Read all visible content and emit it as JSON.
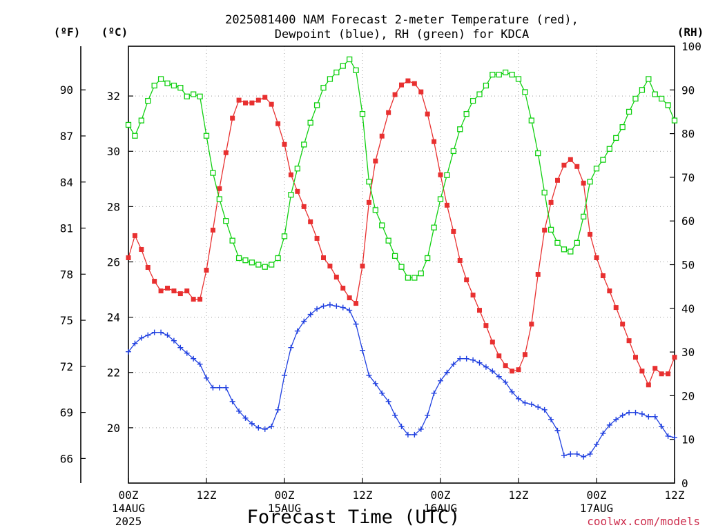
{
  "chart_data": {
    "type": "line",
    "title_line1": "2025081400 NAM Forecast 2-meter Temperature (red),",
    "title_line2": "Dewpoint (blue), RH (green) for KDCA",
    "xlabel": "Forecast Time (UTC)",
    "credit": "coolwx.com/models",
    "unit_f": "(ºF)",
    "unit_c": "(ºC)",
    "unit_rh": "(RH)",
    "x_range_hours": [
      0,
      84
    ],
    "x_ticks": [
      {
        "hour": 0,
        "line1": "00Z",
        "line2": "14AUG",
        "line3": "2025"
      },
      {
        "hour": 12,
        "line1": "12Z",
        "line2": "",
        "line3": ""
      },
      {
        "hour": 24,
        "line1": "00Z",
        "line2": "15AUG",
        "line3": ""
      },
      {
        "hour": 36,
        "line1": "12Z",
        "line2": "",
        "line3": ""
      },
      {
        "hour": 48,
        "line1": "00Z",
        "line2": "16AUG",
        "line3": ""
      },
      {
        "hour": 60,
        "line1": "12Z",
        "line2": "",
        "line3": ""
      },
      {
        "hour": 72,
        "line1": "00Z",
        "line2": "17AUG",
        "line3": ""
      },
      {
        "hour": 84,
        "line1": "12Z",
        "line2": "",
        "line3": ""
      }
    ],
    "y_celsius": {
      "range": [
        18.0,
        33.8
      ],
      "ticks": [
        "20",
        "22",
        "24",
        "26",
        "28",
        "30",
        "32"
      ]
    },
    "y_fahrenheit": {
      "ticks": [
        "66",
        "69",
        "72",
        "75",
        "78",
        "81",
        "84",
        "87",
        "90"
      ]
    },
    "y_rh": {
      "range": [
        0,
        100
      ],
      "ticks": [
        "0",
        "10",
        "20",
        "30",
        "40",
        "50",
        "60",
        "70",
        "80",
        "90",
        "100"
      ]
    },
    "grid": true,
    "colors": {
      "temperature": "#e83030",
      "dewpoint": "#2040e0",
      "rh": "#10d010",
      "grid": "#999999",
      "credit": "#cc2a4a"
    },
    "series": [
      {
        "name": "Temperature",
        "axis": "celsius",
        "marker": "filled-square",
        "hours": [
          0,
          1,
          2,
          3,
          4,
          5,
          6,
          7,
          8,
          9,
          10,
          11,
          12,
          13,
          14,
          15,
          16,
          17,
          18,
          19,
          20,
          21,
          22,
          23,
          24,
          25,
          26,
          27,
          28,
          29,
          30,
          31,
          32,
          33,
          34,
          35,
          36,
          37,
          38,
          39,
          40,
          41,
          42,
          43,
          44,
          45,
          46,
          47,
          48,
          49,
          50,
          51,
          52,
          53,
          54,
          55,
          56,
          57,
          58,
          59,
          60,
          61,
          62,
          63,
          64,
          65,
          66,
          67,
          68,
          69,
          70,
          71,
          72,
          73,
          74,
          75,
          76,
          77,
          78,
          79,
          80,
          81,
          82,
          83,
          84
        ],
        "values": [
          26.15,
          26.95,
          26.45,
          25.8,
          25.3,
          24.95,
          25.05,
          24.95,
          24.85,
          24.95,
          24.65,
          24.65,
          25.7,
          27.15,
          28.65,
          29.95,
          31.2,
          31.85,
          31.75,
          31.75,
          31.85,
          31.95,
          31.7,
          31.0,
          30.25,
          29.15,
          28.55,
          28.0,
          27.45,
          26.85,
          26.15,
          25.85,
          25.45,
          25.05,
          24.7,
          24.5,
          25.85,
          28.15,
          29.65,
          30.55,
          31.4,
          32.05,
          32.4,
          32.55,
          32.45,
          32.15,
          31.35,
          30.35,
          29.15,
          28.05,
          27.1,
          26.05,
          25.35,
          24.8,
          24.25,
          23.7,
          23.1,
          22.6,
          22.25,
          22.05,
          22.1,
          22.65,
          23.75,
          25.55,
          27.15,
          28.15,
          28.95,
          29.5,
          29.7,
          29.45,
          28.85,
          27.0,
          26.15,
          25.5,
          24.95,
          24.35,
          23.75,
          23.15,
          22.55,
          22.05,
          21.55,
          22.15,
          21.95,
          21.95,
          22.55
        ]
      },
      {
        "name": "Dewpoint",
        "axis": "celsius",
        "marker": "plus",
        "hours": [
          0,
          1,
          2,
          3,
          4,
          5,
          6,
          7,
          8,
          9,
          10,
          11,
          12,
          13,
          14,
          15,
          16,
          17,
          18,
          19,
          20,
          21,
          22,
          23,
          24,
          25,
          26,
          27,
          28,
          29,
          30,
          31,
          32,
          33,
          34,
          35,
          36,
          37,
          38,
          39,
          40,
          41,
          42,
          43,
          44,
          45,
          46,
          47,
          48,
          49,
          50,
          51,
          52,
          53,
          54,
          55,
          56,
          57,
          58,
          59,
          60,
          61,
          62,
          63,
          64,
          65,
          66,
          67,
          68,
          69,
          70,
          71,
          72,
          73,
          74,
          75,
          76,
          77,
          78,
          79,
          80,
          81,
          82,
          83,
          84
        ],
        "values": [
          22.75,
          23.05,
          23.25,
          23.35,
          23.45,
          23.45,
          23.35,
          23.15,
          22.9,
          22.7,
          22.5,
          22.3,
          21.8,
          21.45,
          21.45,
          21.45,
          20.95,
          20.6,
          20.35,
          20.15,
          20.0,
          19.95,
          20.05,
          20.65,
          21.9,
          22.9,
          23.5,
          23.85,
          24.1,
          24.3,
          24.4,
          24.45,
          24.4,
          24.35,
          24.25,
          23.75,
          22.8,
          21.9,
          21.6,
          21.25,
          20.95,
          20.45,
          20.05,
          19.75,
          19.75,
          19.95,
          20.45,
          21.25,
          21.7,
          22.0,
          22.3,
          22.5,
          22.5,
          22.45,
          22.35,
          22.2,
          22.05,
          21.85,
          21.65,
          21.3,
          21.05,
          20.9,
          20.85,
          20.75,
          20.65,
          20.3,
          19.9,
          19.0,
          19.05,
          19.05,
          18.95,
          19.05,
          19.4,
          19.8,
          20.1,
          20.3,
          20.45,
          20.55,
          20.55,
          20.5,
          20.4,
          20.4,
          20.05,
          19.7,
          19.65
        ]
      },
      {
        "name": "RH",
        "axis": "rh",
        "marker": "open-square",
        "hours": [
          0,
          1,
          2,
          3,
          4,
          5,
          6,
          7,
          8,
          9,
          10,
          11,
          12,
          13,
          14,
          15,
          16,
          17,
          18,
          19,
          20,
          21,
          22,
          23,
          24,
          25,
          26,
          27,
          28,
          29,
          30,
          31,
          32,
          33,
          34,
          35,
          36,
          37,
          38,
          39,
          40,
          41,
          42,
          43,
          44,
          45,
          46,
          47,
          48,
          49,
          50,
          51,
          52,
          53,
          54,
          55,
          56,
          57,
          58,
          59,
          60,
          61,
          62,
          63,
          64,
          65,
          66,
          67,
          68,
          69,
          70,
          71,
          72,
          73,
          74,
          75,
          76,
          77,
          78,
          79,
          80,
          81,
          82,
          83,
          84
        ],
        "values": [
          82,
          79.5,
          83,
          87.5,
          91,
          92.5,
          91.5,
          91,
          90.5,
          88.5,
          89,
          88.5,
          79.5,
          71,
          65,
          60,
          55.5,
          51.5,
          51,
          50.5,
          50,
          49.5,
          50,
          51.5,
          56.5,
          66,
          72,
          77.5,
          82.5,
          86.5,
          90.5,
          92.5,
          94,
          95.5,
          97,
          94.5,
          84.5,
          69,
          62.5,
          59,
          55.5,
          52,
          49.5,
          47,
          47,
          48,
          51.5,
          58.5,
          65,
          70.5,
          76,
          81,
          84.5,
          87.5,
          89,
          91,
          93.5,
          93.5,
          94,
          93.5,
          92.5,
          89.5,
          83,
          75.5,
          66.5,
          58,
          55,
          53.5,
          53,
          55,
          61,
          69,
          72,
          74,
          76.5,
          79,
          81.5,
          85,
          88,
          90,
          92.5,
          89,
          88,
          86.5,
          83
        ]
      }
    ]
  }
}
